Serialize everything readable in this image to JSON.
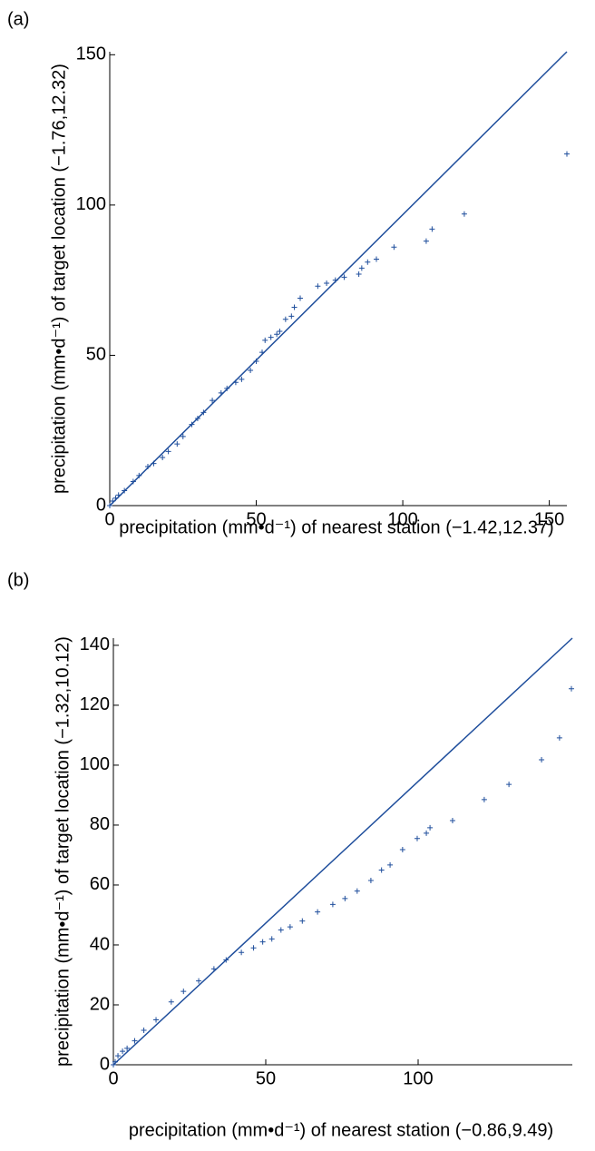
{
  "chart_data": [
    {
      "type": "scatter",
      "panel_label": "(a)",
      "xlabel": "precipitation (mm•d⁻¹) of nearest station (−1.42,12.37)",
      "ylabel": "precipitation (mm•d⁻¹) of target location (−1.76,12.32)",
      "xlim": [
        0,
        156
      ],
      "ylim": [
        0,
        151
      ],
      "xticks": [
        0,
        50,
        100,
        150
      ],
      "yticks": [
        0,
        50,
        100,
        150
      ],
      "color": "#1f4e9c",
      "series": [
        {
          "type": "line",
          "x": [
            0,
            156
          ],
          "values": [
            0,
            151
          ]
        },
        {
          "type": "scatter",
          "marker": "+",
          "x": [
            0,
            1,
            2,
            3,
            5,
            8,
            10,
            13,
            15,
            18,
            20,
            23,
            25,
            28,
            30,
            32,
            35,
            38,
            40,
            43,
            45,
            48,
            50,
            52,
            53,
            55,
            57,
            58,
            60,
            62,
            63,
            65,
            71,
            74,
            77,
            80,
            85,
            86,
            88,
            91,
            97,
            108,
            110,
            121,
            156
          ],
          "values": [
            0,
            1.5,
            2.5,
            3.5,
            5,
            8,
            10,
            13,
            14,
            16,
            18,
            20.5,
            23,
            27,
            29,
            31,
            35,
            37.5,
            39,
            41,
            42,
            45,
            48,
            51,
            55,
            56,
            57,
            58,
            62,
            63,
            66,
            69,
            73,
            74,
            75,
            76,
            77,
            79,
            81,
            82,
            86,
            88,
            92,
            97,
            117
          ]
        }
      ]
    },
    {
      "type": "scatter",
      "panel_label": "(b)",
      "xlabel": "precipitation (mm•d⁻¹) of nearest station (−0.86,9.49)",
      "ylabel": "precipitation (mm•d⁻¹) of target location (−1.32,10.12)",
      "xlim": [
        0,
        150.6
      ],
      "ylim": [
        0,
        142.4
      ],
      "xticks": [
        0,
        50,
        100
      ],
      "yticks": [
        0,
        20,
        40,
        60,
        80,
        100,
        120,
        140
      ],
      "color": "#1f4e9c",
      "series": [
        {
          "type": "line",
          "x": [
            0,
            150.6
          ],
          "values": [
            0,
            142.4
          ]
        },
        {
          "type": "scatter",
          "marker": "+",
          "x": [
            0,
            0.6,
            1.5,
            3,
            4.5,
            7,
            10,
            14,
            19,
            23,
            28,
            33,
            37,
            42,
            46,
            49,
            52,
            55,
            58,
            62,
            67,
            72,
            76,
            80,
            84.5,
            88,
            90.8,
            94.9,
            99.7,
            102.7,
            103.9,
            111.3,
            121.7,
            129.8,
            140.5,
            146.4,
            150.3
          ],
          "values": [
            0,
            1,
            3,
            4.5,
            5.5,
            8,
            11.5,
            15,
            21,
            24.5,
            28,
            32,
            35,
            37.5,
            39,
            41,
            42,
            45,
            46,
            48,
            51,
            53.5,
            55.5,
            58,
            61.5,
            65,
            66.7,
            71.8,
            75.5,
            77.3,
            79.1,
            81.5,
            88.5,
            93.6,
            101.8,
            109.1,
            125.5
          ]
        }
      ]
    }
  ]
}
